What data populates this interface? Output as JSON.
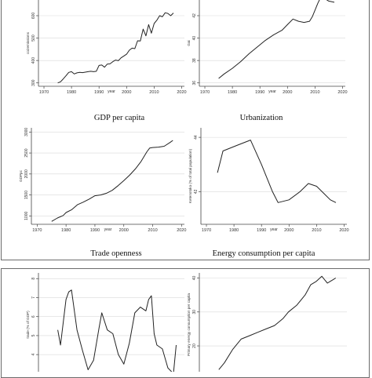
{
  "layout": {
    "frame_color": "#6b6b6b",
    "plot_bg": "#ffffff",
    "line_color": "#222222",
    "axis_color": "#444444",
    "grid_color": "#d9d9d9"
  },
  "captions": {
    "gdp": "GDP per capita",
    "urbanization": "Urbanization",
    "trade": "Trade openness",
    "energy": "Energy consumption per capita"
  },
  "chart_data": [
    {
      "id": "co2",
      "type": "line",
      "xlabel": "year",
      "ylabel": "co2emissions",
      "xlim": [
        1968,
        2021
      ],
      "ylim": [
        285,
        670
      ],
      "xticks": [
        1970,
        1980,
        1990,
        2000,
        2010,
        2020
      ],
      "yticks": [
        300,
        400,
        500,
        600
      ],
      "grid": true,
      "series": [
        {
          "x": [
            1975,
            1976,
            1977,
            1978,
            1979,
            1980,
            1981,
            1982,
            1983,
            1984,
            1985,
            1986,
            1987,
            1988,
            1989,
            1990,
            1991,
            1992,
            1993,
            1994,
            1995,
            1996,
            1997,
            1998,
            1999,
            2000,
            2001,
            2002,
            2003,
            2004,
            2005,
            2006,
            2007,
            2008,
            2009,
            2010,
            2011,
            2012,
            2013,
            2014,
            2015,
            2016,
            2017
          ],
          "y": [
            300,
            305,
            318,
            332,
            347,
            350,
            340,
            345,
            347,
            346,
            348,
            350,
            352,
            350,
            352,
            378,
            380,
            370,
            384,
            385,
            395,
            402,
            399,
            412,
            420,
            428,
            446,
            455,
            453,
            488,
            487,
            540,
            510,
            560,
            522,
            565,
            580,
            600,
            595,
            613,
            610,
            600,
            612
          ]
        }
      ]
    },
    {
      "id": "urbanization",
      "type": "line",
      "xlabel": "year",
      "ylabel": "Gai",
      "xlim": [
        1968,
        2021
      ],
      "ylim": [
        35.7,
        43.4
      ],
      "xticks": [
        1970,
        1980,
        1990,
        2000,
        2010,
        2020
      ],
      "yticks": [
        36,
        38,
        40,
        42
      ],
      "grid": true,
      "series": [
        {
          "x": [
            1975,
            1977,
            1980,
            1983,
            1986,
            1989,
            1992,
            1995,
            1998,
            2000,
            2002,
            2004,
            2006,
            2008,
            2009,
            2010,
            2011,
            2012,
            2013,
            2015,
            2017
          ],
          "y": [
            36.4,
            36.8,
            37.3,
            37.9,
            38.6,
            39.2,
            39.8,
            40.3,
            40.7,
            41.2,
            41.7,
            41.5,
            41.4,
            41.5,
            41.9,
            42.5,
            43.1,
            43.6,
            43.6,
            43.3,
            43.2
          ]
        }
      ]
    },
    {
      "id": "gdp",
      "type": "line",
      "xlabel": "year",
      "ylabel": "GDPpc",
      "xlim": [
        1968,
        2021
      ],
      "ylim": [
        800,
        3100
      ],
      "xticks": [
        1970,
        1980,
        1990,
        2000,
        2010,
        2020
      ],
      "yticks": [
        1000,
        1500,
        2000,
        2500,
        3000
      ],
      "grid": true,
      "series": [
        {
          "x": [
            1975,
            1977,
            1979,
            1980,
            1982,
            1984,
            1986,
            1988,
            1990,
            1992,
            1994,
            1996,
            1998,
            2000,
            2002,
            2004,
            2006,
            2008,
            2009,
            2010,
            2012,
            2014,
            2016,
            2017
          ],
          "y": [
            870,
            950,
            1010,
            1080,
            1150,
            1270,
            1330,
            1400,
            1480,
            1500,
            1540,
            1610,
            1720,
            1840,
            1970,
            2120,
            2300,
            2530,
            2620,
            2630,
            2640,
            2660,
            2750,
            2800
          ]
        }
      ]
    },
    {
      "id": "energy_top",
      "type": "line",
      "xlabel": "year",
      "ylabel": "Ketenotoko (% of total population)",
      "xlim": [
        1968,
        2021
      ],
      "ylim": [
        40.8,
        44.35
      ],
      "xticks": [
        1970,
        1980,
        1990,
        2000,
        2010,
        2020
      ],
      "yticks": [
        42,
        44
      ],
      "grid": true,
      "series": [
        {
          "x": [
            1974,
            1976,
            1981,
            1986,
            1990,
            1994,
            1996,
            2000,
            2004,
            2007,
            2010,
            2013,
            2015,
            2017
          ],
          "y": [
            42.7,
            43.5,
            43.7,
            43.9,
            43.0,
            42.0,
            41.6,
            41.7,
            42.0,
            42.3,
            42.2,
            41.9,
            41.7,
            41.6
          ]
        }
      ]
    },
    {
      "id": "trade",
      "type": "line",
      "xlabel": "",
      "ylabel": "trade (% of GDP)",
      "xlim": [
        1968,
        2021
      ],
      "ylim": [
        2.85,
        8.3
      ],
      "xticks": [],
      "yticks": [
        3,
        4,
        5,
        6,
        7,
        8
      ],
      "grid": true,
      "series": [
        {
          "x": [
            1975,
            1976,
            1978,
            1979,
            1980,
            1982,
            1984,
            1986,
            1988,
            1990,
            1991,
            1993,
            1995,
            1997,
            1999,
            2001,
            2003,
            2005,
            2007,
            2008,
            2009,
            2010,
            2011,
            2013,
            2015,
            2017,
            2018
          ],
          "y": [
            5.3,
            4.5,
            6.9,
            7.3,
            7.4,
            5.3,
            4.2,
            3.2,
            3.7,
            5.4,
            6.2,
            5.3,
            5.1,
            4.0,
            3.5,
            4.6,
            6.2,
            6.5,
            6.3,
            6.9,
            7.1,
            5.1,
            4.5,
            4.3,
            3.3,
            3.0,
            4.5
          ]
        }
      ]
    },
    {
      "id": "energy_bottom",
      "type": "line",
      "xlabel": "",
      "ylabel": "Primary energy consumption per capita",
      "xlim": [
        1968,
        2021
      ],
      "ylim": [
        11,
        41.5
      ],
      "xticks": [],
      "yticks": [
        20,
        30,
        40
      ],
      "grid": true,
      "series": [
        {
          "x": [
            1975,
            1977,
            1980,
            1983,
            1986,
            1989,
            1992,
            1995,
            1998,
            2000,
            2003,
            2006,
            2008,
            2010,
            2012,
            2013,
            2014,
            2015,
            2016,
            2017
          ],
          "y": [
            13,
            15,
            19,
            22,
            23,
            24,
            25,
            26,
            28,
            30,
            32,
            35,
            38,
            39,
            40.5,
            39.5,
            38.5,
            39.0,
            39.5,
            40.0
          ]
        }
      ]
    }
  ]
}
